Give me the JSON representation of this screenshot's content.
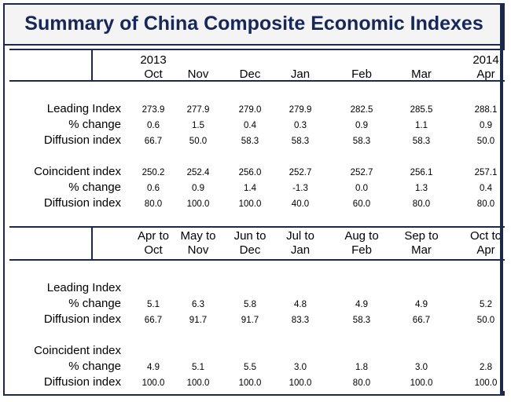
{
  "title": "Summary of China Composite Economic Indexes",
  "monthly": {
    "columns": [
      {
        "top": "2013",
        "bottom": "Oct"
      },
      {
        "top": "",
        "bottom": "Nov"
      },
      {
        "top": "",
        "bottom": "Dec"
      },
      {
        "top": "",
        "bottom": "Jan"
      },
      {
        "top": "",
        "bottom": "Feb"
      },
      {
        "top": "",
        "bottom": "Mar"
      },
      {
        "top": "2014",
        "bottom": "Apr"
      }
    ],
    "rows": [
      {
        "label": "Leading Index",
        "values": [
          "273.9",
          "277.9",
          "279.0",
          "279.9",
          "282.5",
          "285.5",
          "288.1"
        ]
      },
      {
        "label": "% change",
        "values": [
          "0.6",
          "1.5",
          "0.4",
          "0.3",
          "0.9",
          "1.1",
          "0.9"
        ]
      },
      {
        "label": "Diffusion index",
        "values": [
          "66.7",
          "50.0",
          "58.3",
          "58.3",
          "58.3",
          "58.3",
          "50.0"
        ]
      },
      {
        "label": "Coincident index",
        "values": [
          "250.2",
          "252.4",
          "256.0",
          "252.7",
          "252.7",
          "256.1",
          "257.1"
        ]
      },
      {
        "label": "% change",
        "values": [
          "0.6",
          "0.9",
          "1.4",
          "-1.3",
          "0.0",
          "1.3",
          "0.4"
        ]
      },
      {
        "label": "Diffusion index",
        "values": [
          "80.0",
          "100.0",
          "100.0",
          "40.0",
          "60.0",
          "80.0",
          "80.0"
        ]
      }
    ]
  },
  "sixmonth": {
    "columns": [
      {
        "top": "Apr to",
        "bottom": "Oct"
      },
      {
        "top": "May to",
        "bottom": "Nov"
      },
      {
        "top": "Jun to",
        "bottom": "Dec"
      },
      {
        "top": "Jul to",
        "bottom": "Jan"
      },
      {
        "top": "Aug to",
        "bottom": "Feb"
      },
      {
        "top": "Sep to",
        "bottom": "Mar"
      },
      {
        "top": "Oct to",
        "bottom": "Apr"
      }
    ],
    "rows": [
      {
        "label": "Leading Index",
        "values": [
          "",
          "",
          "",
          "",
          "",
          "",
          ""
        ]
      },
      {
        "label": "% change",
        "values": [
          "5.1",
          "6.3",
          "5.8",
          "4.8",
          "4.9",
          "4.9",
          "5.2"
        ]
      },
      {
        "label": "Diffusion index",
        "values": [
          "66.7",
          "91.7",
          "91.7",
          "83.3",
          "58.3",
          "66.7",
          "50.0"
        ]
      },
      {
        "label": "Coincident index",
        "values": [
          "",
          "",
          "",
          "",
          "",
          "",
          ""
        ]
      },
      {
        "label": "% change",
        "values": [
          "4.9",
          "5.1",
          "5.5",
          "3.0",
          "1.8",
          "3.0",
          "2.8"
        ]
      },
      {
        "label": "Diffusion index",
        "values": [
          "100.0",
          "100.0",
          "100.0",
          "100.0",
          "80.0",
          "100.0",
          "100.0"
        ]
      }
    ]
  }
}
